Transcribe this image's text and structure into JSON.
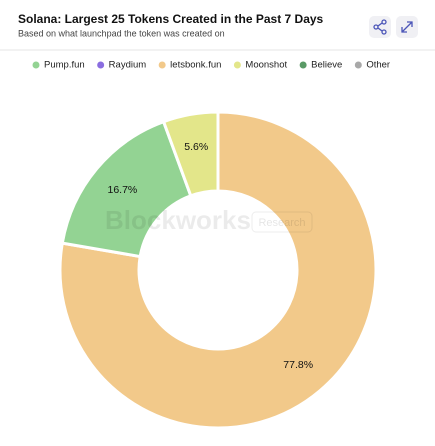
{
  "chart_data": {
    "type": "donut",
    "title": "Solana: Largest 25 Tokens Created in the Past 7 Days",
    "subtitle": "Based on what launchpad the token was created on",
    "watermark": [
      "Blockworks",
      "Research"
    ],
    "categories": [
      "Pump.fun",
      "Raydium",
      "letsbonk.fun",
      "Moonshot",
      "Believe",
      "Other"
    ],
    "values": [
      16.7,
      0,
      77.8,
      5.6,
      0,
      0
    ],
    "value_labels": [
      "16.7%",
      null,
      "77.8%",
      "5.6%",
      null,
      null
    ],
    "colors": [
      "#93d393",
      "#8a6de0",
      "#f2c98a",
      "#e3e68a",
      "#5a9a66",
      "#a8a8a8"
    ],
    "legend": "top"
  }
}
